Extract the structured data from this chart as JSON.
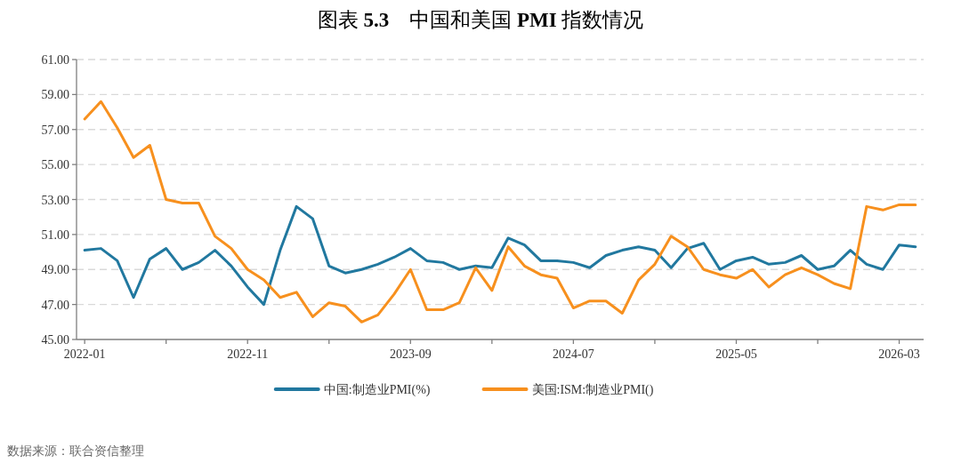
{
  "chart_data": {
    "type": "line",
    "title": "图表 **5.3**　中国和美国 **PMI** 指数情况",
    "categories": [
      "2022-01",
      null,
      null,
      null,
      null,
      null,
      null,
      null,
      null,
      null,
      "2022-11",
      null,
      null,
      null,
      null,
      null,
      null,
      null,
      null,
      null,
      "2023-09",
      null,
      null,
      null,
      null,
      null,
      null,
      null,
      null,
      null,
      "2024-07",
      null,
      null,
      null,
      null,
      null,
      null,
      null,
      null,
      null,
      "2025-05",
      null,
      null,
      null,
      null,
      null,
      null,
      null,
      null,
      null,
      "2026-03",
      null
    ],
    "series": [
      {
        "name": "中国:制造业PMI(%)",
        "color": "#21789f",
        "values": [
          50.1,
          50.2,
          49.5,
          47.4,
          49.6,
          50.2,
          49.0,
          49.4,
          50.1,
          49.2,
          48.0,
          47.0,
          50.1,
          52.6,
          51.9,
          49.2,
          48.8,
          49.0,
          49.3,
          49.7,
          50.2,
          49.5,
          49.4,
          49.0,
          49.2,
          49.1,
          50.8,
          50.4,
          49.5,
          49.5,
          49.4,
          49.1,
          49.8,
          50.1,
          50.3,
          50.1,
          49.1,
          50.2,
          50.5,
          49.0,
          49.5,
          49.7,
          49.3,
          49.4,
          49.8,
          49.0,
          49.2,
          50.1,
          49.3,
          49.0,
          50.4,
          50.3
        ]
      },
      {
        "name": "美国:ISM:制造业PMI()",
        "color": "#f7901e",
        "values": [
          57.6,
          58.6,
          57.1,
          55.4,
          56.1,
          53.0,
          52.8,
          52.8,
          50.9,
          50.2,
          49.0,
          48.4,
          47.4,
          47.7,
          46.3,
          47.1,
          46.9,
          46.0,
          46.4,
          47.6,
          49.0,
          46.7,
          46.7,
          47.1,
          49.1,
          47.8,
          50.3,
          49.2,
          48.7,
          48.5,
          46.8,
          47.2,
          47.2,
          46.5,
          48.4,
          49.3,
          50.9,
          50.3,
          49.0,
          48.7,
          48.5,
          49.0,
          48.0,
          48.7,
          49.1,
          48.7,
          48.2,
          47.9,
          52.6,
          52.4,
          52.7,
          52.7
        ]
      }
    ],
    "ylim": [
      45,
      61
    ],
    "yticks": [
      {
        "value": 45,
        "label": "45.00"
      },
      {
        "value": 47,
        "label": "47.00"
      },
      {
        "value": 49,
        "label": "49.00"
      },
      {
        "value": 51,
        "label": "51.00"
      },
      {
        "value": 53,
        "label": "53.00"
      },
      {
        "value": 55,
        "label": "55.00"
      },
      {
        "value": 57,
        "label": "57.00"
      },
      {
        "value": 59,
        "label": "59.00"
      },
      {
        "value": 61,
        "label": "61.00"
      }
    ],
    "grid": "y",
    "legend": "bottom",
    "marker": "none",
    "line_style": "solid",
    "annotations": [
      "数据来源：联合资信整理"
    ]
  }
}
